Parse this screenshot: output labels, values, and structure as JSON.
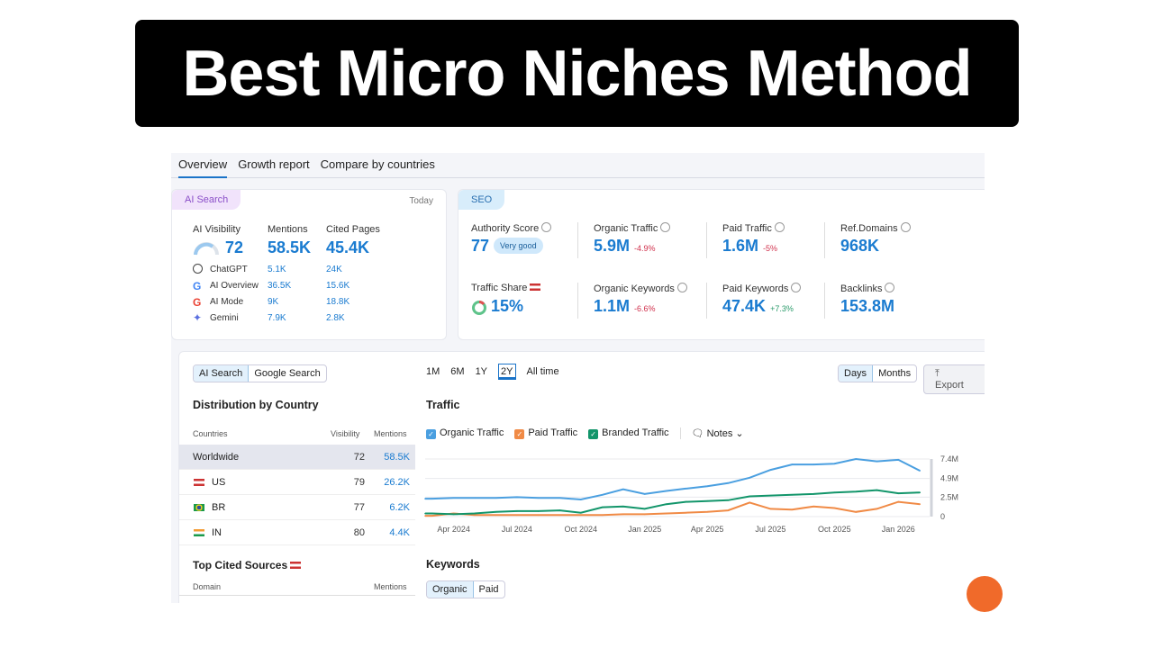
{
  "banner": {
    "title": "Best Micro Niches Method"
  },
  "tabs": [
    "Overview",
    "Growth report",
    "Compare by countries"
  ],
  "ai_search": {
    "pill": "AI Search",
    "date": "Today",
    "visibility_label": "AI Visibility",
    "visibility": "72",
    "mentions_label": "Mentions",
    "mentions": "58.5K",
    "cited_label": "Cited Pages",
    "cited": "45.4K",
    "rows": [
      {
        "name": "ChatGPT",
        "icon": "chatgpt-icon",
        "mentions": "5.1K",
        "cited": "24K"
      },
      {
        "name": "AI Overview",
        "icon": "google-icon",
        "mentions": "36.5K",
        "cited": "15.6K"
      },
      {
        "name": "AI Mode",
        "icon": "google-icon",
        "mentions": "9K",
        "cited": "18.8K"
      },
      {
        "name": "Gemini",
        "icon": "gemini-icon",
        "mentions": "7.9K",
        "cited": "2.8K"
      }
    ]
  },
  "seo": {
    "pill": "SEO",
    "metrics": [
      {
        "label": "Authority Score",
        "value": "77",
        "badge": "Very good"
      },
      {
        "label": "Organic Traffic",
        "value": "5.9M",
        "change": "-4.9%"
      },
      {
        "label": "Paid Traffic",
        "value": "1.6M",
        "change": "-5%"
      },
      {
        "label": "Ref.Domains",
        "value": "968K"
      },
      {
        "label": "Traffic Share",
        "value": "15%"
      },
      {
        "label": "Organic Keywords",
        "value": "1.1M",
        "change": "-6.6%"
      },
      {
        "label": "Paid Keywords",
        "value": "47.4K",
        "change": "+7.3%"
      },
      {
        "label": "Backlinks",
        "value": "153.8M"
      }
    ]
  },
  "left": {
    "toggle": [
      "AI Search",
      "Google Search"
    ],
    "dist_title": "Distribution by Country",
    "cols": [
      "Countries",
      "Visibility",
      "Mentions"
    ],
    "rows": [
      {
        "country": "Worldwide",
        "visibility": "72",
        "mentions": "58.5K"
      },
      {
        "country": "US",
        "visibility": "79",
        "mentions": "26.2K"
      },
      {
        "country": "BR",
        "visibility": "77",
        "mentions": "6.2K"
      },
      {
        "country": "IN",
        "visibility": "80",
        "mentions": "4.4K"
      }
    ],
    "cited_title": "Top Cited Sources",
    "cited_cols": [
      "Domain",
      "Mentions"
    ]
  },
  "ranges": [
    "1M",
    "6M",
    "1Y",
    "2Y",
    "All time"
  ],
  "active_range": "2Y",
  "granularity": [
    "Days",
    "Months"
  ],
  "export": "Export",
  "traffic_title": "Traffic",
  "legend": [
    "Organic Traffic",
    "Paid Traffic",
    "Branded Traffic"
  ],
  "notes": "Notes",
  "keywords_title": "Keywords",
  "kw_toggle": [
    "Organic",
    "Paid"
  ],
  "colors": {
    "organic": "#4a9fe0",
    "paid": "#f08a45",
    "branded": "#12956a",
    "accent": "#1a7bd0"
  },
  "chart_data": {
    "type": "line",
    "y_ticks": [
      "7.4M",
      "4.9M",
      "2.5M",
      "0"
    ],
    "ylim": [
      0,
      7.4
    ],
    "x_ticks": [
      "Apr 2024",
      "Jul 2024",
      "Oct 2024",
      "Jan 2025",
      "Apr 2025",
      "Jul 2025",
      "Oct 2025",
      "Jan 2026"
    ],
    "x": [
      "2024-02",
      "2024-03",
      "2024-04",
      "2024-05",
      "2024-06",
      "2024-07",
      "2024-08",
      "2024-09",
      "2024-10",
      "2024-11",
      "2024-12",
      "2025-01",
      "2025-02",
      "2025-03",
      "2025-04",
      "2025-05",
      "2025-06",
      "2025-07",
      "2025-08",
      "2025-09",
      "2025-10",
      "2025-11",
      "2025-12",
      "2026-01",
      "2026-02"
    ],
    "series": [
      {
        "name": "Organic Traffic",
        "values": [
          2.3,
          2.3,
          2.4,
          2.4,
          2.4,
          2.5,
          2.4,
          2.4,
          2.2,
          2.8,
          3.5,
          2.9,
          3.3,
          3.6,
          3.9,
          4.3,
          5.0,
          6.0,
          6.7,
          6.7,
          6.8,
          7.4,
          7.1,
          7.3,
          5.9
        ]
      },
      {
        "name": "Paid Traffic",
        "values": [
          0.1,
          0.1,
          0.4,
          0.2,
          0.2,
          0.2,
          0.2,
          0.2,
          0.2,
          0.2,
          0.3,
          0.3,
          0.4,
          0.5,
          0.6,
          0.8,
          1.8,
          1.0,
          0.9,
          1.3,
          1.1,
          0.6,
          1.0,
          1.9,
          1.6
        ]
      },
      {
        "name": "Branded Traffic",
        "values": [
          0.4,
          0.4,
          0.3,
          0.4,
          0.6,
          0.7,
          0.7,
          0.8,
          0.5,
          1.2,
          1.3,
          1.0,
          1.6,
          1.9,
          2.0,
          2.1,
          2.6,
          2.7,
          2.8,
          2.9,
          3.1,
          3.2,
          3.4,
          3.0,
          3.1
        ]
      }
    ]
  }
}
